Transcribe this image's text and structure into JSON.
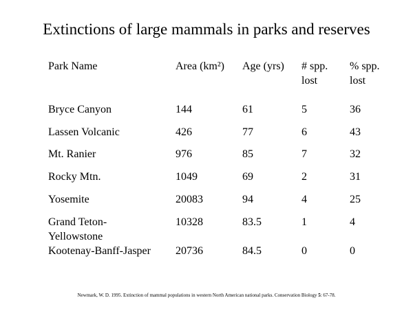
{
  "title": "Extinctions of large mammals in parks and reserves",
  "table": {
    "headers": [
      "Park Name",
      "Area (km²)",
      "Age (yrs)",
      "# spp. lost",
      "% spp. lost"
    ],
    "rows": [
      [
        "Bryce Canyon",
        144,
        61,
        5,
        36
      ],
      [
        "Lassen Volcanic",
        426,
        77,
        6,
        43
      ],
      [
        "Mt. Ranier",
        976,
        85,
        7,
        32
      ],
      [
        "Rocky Mtn.",
        1049,
        69,
        2,
        31
      ],
      [
        "Yosemite",
        20083,
        94,
        4,
        25
      ],
      [
        "Grand Teton-Yellowstone",
        10328,
        83.5,
        1,
        4
      ],
      [
        "Kootenay-Banff-Jasper",
        20736,
        84.5,
        0,
        0
      ]
    ]
  },
  "citation": {
    "before": "Newmark, W. D. 1995. Extinction of mammal populations in western North American national parks. Conservation Biology ",
    "volume": "5",
    "after": ": 67-78."
  }
}
